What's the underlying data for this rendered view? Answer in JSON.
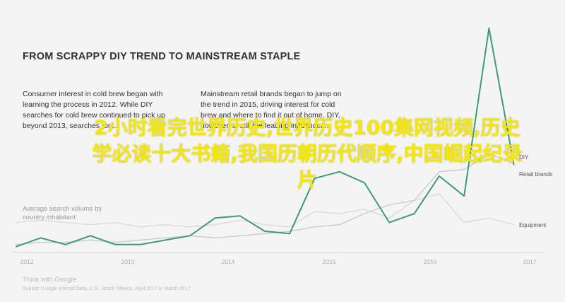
{
  "chart_data": {
    "type": "line",
    "title": "FROM SCRAPPY DIY TREND TO MAINSTREAM STAPLE",
    "ylabel": "Average search volume by country inhabitant",
    "x_ticks": [
      "2012",
      "2013",
      "2014",
      "2015",
      "2016",
      "2017"
    ],
    "x": [
      2012.0,
      2012.25,
      2012.5,
      2012.75,
      2013.0,
      2013.25,
      2013.5,
      2013.75,
      2014.0,
      2014.25,
      2014.5,
      2014.75,
      2015.0,
      2015.25,
      2015.5,
      2015.75,
      2016.0,
      2016.25,
      2016.5,
      2016.75,
      2017.0
    ],
    "xlim": [
      2011.97,
      2017.3
    ],
    "ylim": [
      0,
      100
    ],
    "series": [
      {
        "name": "DIY",
        "color": "#3d9b7c",
        "values": [
          1,
          5,
          2,
          6,
          2,
          2,
          4,
          6,
          14,
          15,
          8,
          7,
          32,
          35,
          30,
          12,
          16,
          33,
          24,
          100,
          38
        ]
      },
      {
        "name": "Retail brands",
        "color": "#c8c8c8",
        "values": [
          2,
          3,
          3,
          4,
          3,
          4,
          5,
          6,
          5,
          6,
          7,
          8,
          10,
          11,
          16,
          20,
          22,
          35,
          36,
          43,
          39
        ]
      },
      {
        "name": "Equipment",
        "color": "#d8d8d8",
        "values": [
          12,
          13,
          12,
          11,
          12,
          10,
          11,
          10,
          11,
          13,
          11,
          10,
          17,
          16,
          18,
          14,
          22,
          25,
          12,
          14,
          11
        ]
      }
    ]
  },
  "annotations": {
    "left": "Consumer interest in cold brew began with learning the process in 2012. While DIY searches for cold brew continued to pick up beyond 2013, searches for...",
    "right": "Mainstream retail brands began to jump on the trend in 2015, driving interest for cold brew and where to find it out of home. DIY, however, is still the leading influencer..."
  },
  "source": {
    "brand": "Think with Google",
    "note": "Source: Google Internal Data, U.S., Brazil, Mexico, April 2017 to March 2017"
  },
  "overlay_text": "2小时看完世界历史,世界历史100集网视频,历史学必读十大书籍,我国历朝历代顺序,中国崛起纪录片",
  "colors": {
    "diy": "#3d9b7c",
    "overlay": "#f5e800"
  }
}
